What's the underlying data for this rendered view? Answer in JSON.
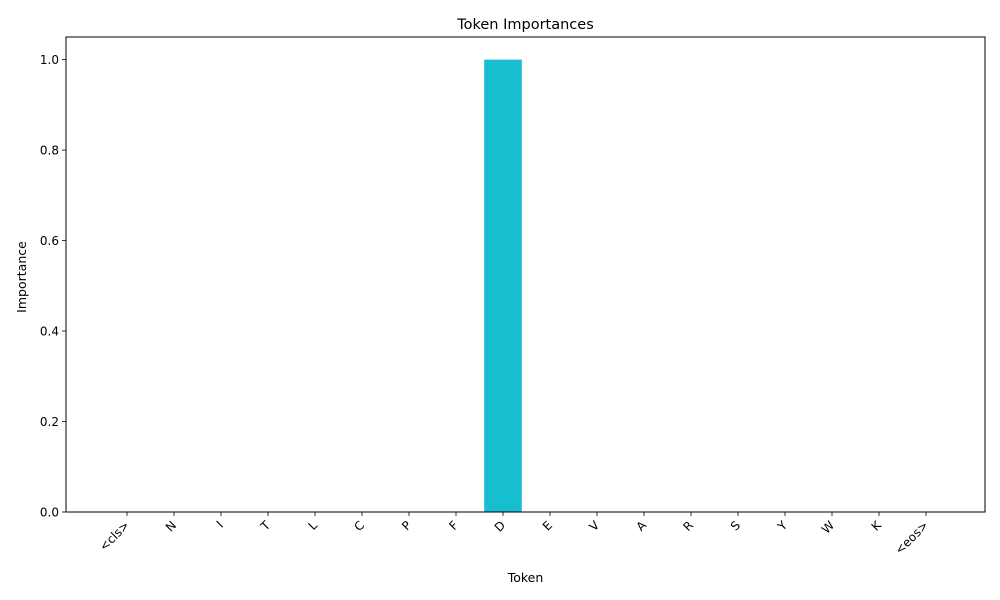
{
  "chart_data": {
    "type": "bar",
    "title": "Token Importances",
    "xlabel": "Token",
    "ylabel": "Importance",
    "categories": [
      "<cls>",
      "N",
      "I",
      "T",
      "L",
      "C",
      "P",
      "F",
      "D",
      "E",
      "V",
      "A",
      "R",
      "S",
      "Y",
      "W",
      "K",
      "<eos>"
    ],
    "values": [
      0,
      0,
      0,
      0,
      0,
      0,
      0,
      0,
      1.0,
      0,
      0,
      0,
      0,
      0,
      0,
      0,
      0,
      0
    ],
    "ylim": [
      0,
      1.05
    ],
    "yticks": [
      0.0,
      0.2,
      0.4,
      0.6,
      0.8,
      1.0
    ],
    "ytick_labels": [
      "0.0",
      "0.2",
      "0.4",
      "0.6",
      "0.8",
      "1.0"
    ],
    "bar_color": "#17becf",
    "grid": false,
    "legend": "none"
  }
}
